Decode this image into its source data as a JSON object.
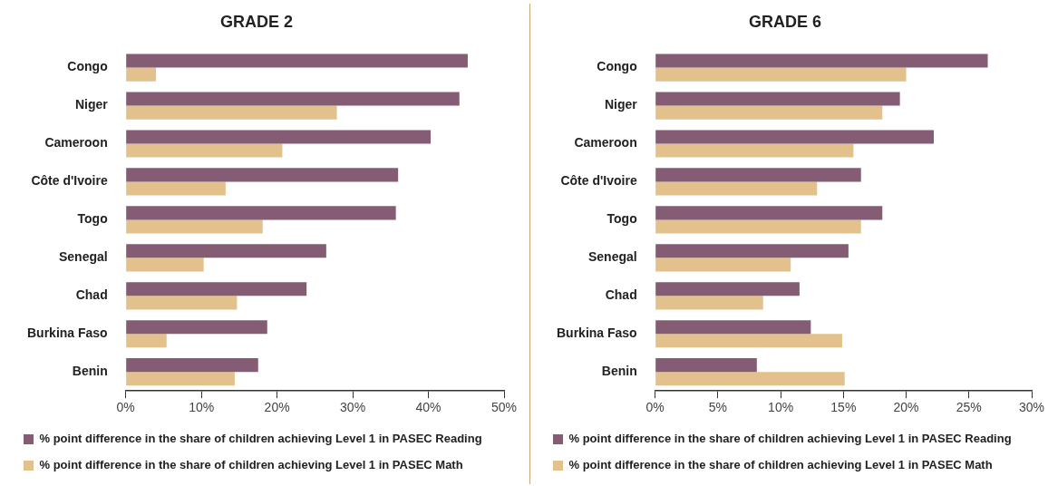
{
  "chart_data": [
    {
      "type": "bar",
      "orientation": "horizontal",
      "title": "GRADE 2",
      "legend": "bottom",
      "grid": false,
      "categories": [
        "Congo",
        "Niger",
        "Cameroon",
        "Côte d'Ivoire",
        "Togo",
        "Senegal",
        "Chad",
        "Burkina Faso",
        "Benin"
      ],
      "series": [
        {
          "name": "% point difference in the share of children achieving Level 1 in PASEC Reading",
          "color": "#845c74",
          "values": [
            45.2,
            44.1,
            40.3,
            36.0,
            35.7,
            26.5,
            23.9,
            18.7,
            17.5
          ]
        },
        {
          "name": "% point difference in the share of children achieving Level 1 in PASEC Math",
          "color": "#e2c18c",
          "values": [
            4.0,
            27.9,
            20.7,
            13.2,
            18.1,
            10.3,
            14.7,
            5.4,
            14.4
          ]
        }
      ],
      "xlim": [
        0,
        50
      ],
      "xticks": [
        {
          "value": 0,
          "label": "0%"
        },
        {
          "value": 10,
          "label": "10%"
        },
        {
          "value": 20,
          "label": "20%"
        },
        {
          "value": 30,
          "label": "30%"
        },
        {
          "value": 40,
          "label": "40%"
        },
        {
          "value": 50,
          "label": "50%"
        }
      ]
    },
    {
      "type": "bar",
      "orientation": "horizontal",
      "title": "GRADE 6",
      "legend": "bottom",
      "grid": false,
      "categories": [
        "Congo",
        "Niger",
        "Cameroon",
        "Côte d'Ivoire",
        "Togo",
        "Senegal",
        "Chad",
        "Burkina Faso",
        "Benin"
      ],
      "series": [
        {
          "name": "% point difference in the share of children achieving Level 1 in PASEC Reading",
          "color": "#845c74",
          "values": [
            26.5,
            19.5,
            22.2,
            16.4,
            18.1,
            15.4,
            11.5,
            12.4,
            8.1
          ]
        },
        {
          "name": "% point difference in the share of children achieving Level 1 in PASEC Math",
          "color": "#e2c18c",
          "values": [
            20.0,
            18.1,
            15.8,
            12.9,
            16.4,
            10.8,
            8.6,
            14.9,
            15.1
          ]
        }
      ],
      "xlim": [
        0,
        30
      ],
      "xticks": [
        {
          "value": 0,
          "label": "0%"
        },
        {
          "value": 5,
          "label": "5%"
        },
        {
          "value": 10,
          "label": "10%"
        },
        {
          "value": 15,
          "label": "15%"
        },
        {
          "value": 20,
          "label": "20%"
        },
        {
          "value": 25,
          "label": "25%"
        },
        {
          "value": 30,
          "label": "30%"
        }
      ]
    }
  ]
}
